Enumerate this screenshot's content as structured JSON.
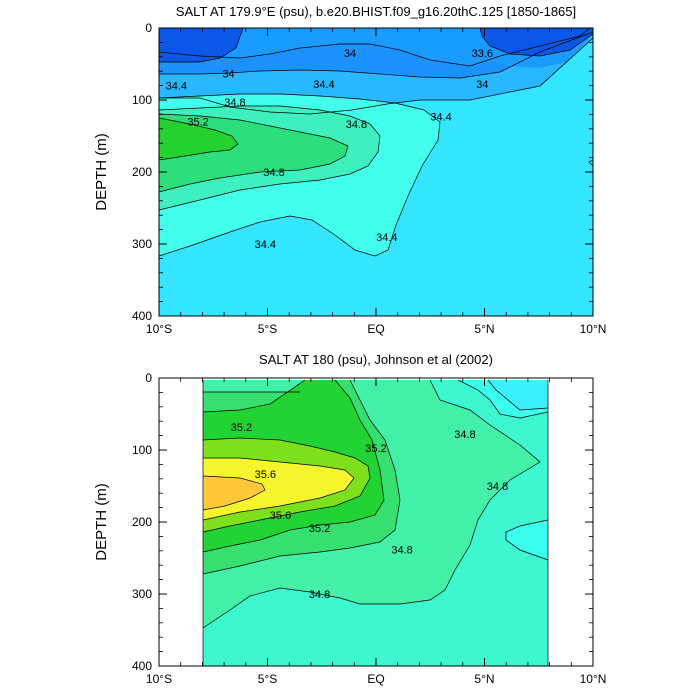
{
  "chart_data": [
    {
      "type": "contour",
      "title": "SALT AT 179.9°E (psu), b.e20.BHIST.f09_g16.20thC.125 [1850-1865]",
      "xlabel": "",
      "ylabel": "DEPTH (m)",
      "xlim": [
        -10,
        10
      ],
      "ylim": [
        400,
        0
      ],
      "xticks": [
        -10,
        -5,
        0,
        5,
        10
      ],
      "xtick_labels": [
        "10°S",
        "5°S",
        "EQ",
        "5°N",
        "10°N"
      ],
      "yticks": [
        0,
        100,
        200,
        300,
        400
      ],
      "ytick_labels": [
        "0",
        "100",
        "200",
        "300",
        "400"
      ],
      "data_lon_range": [
        -10,
        10
      ],
      "contour_labels": [
        {
          "text": "34",
          "lon": -1.2,
          "depth": 35
        },
        {
          "text": "34",
          "lon": -6.8,
          "depth": 63
        },
        {
          "text": "33.6",
          "lon": 4.9,
          "depth": 35
        },
        {
          "text": "34",
          "lon": 4.9,
          "depth": 78
        },
        {
          "text": "34.4",
          "lon": -9.2,
          "depth": 80
        },
        {
          "text": "34.4",
          "lon": -2.4,
          "depth": 78
        },
        {
          "text": "34.8",
          "lon": -6.5,
          "depth": 103
        },
        {
          "text": "35.2",
          "lon": -8.2,
          "depth": 130
        },
        {
          "text": "34.8",
          "lon": -0.9,
          "depth": 133
        },
        {
          "text": "34.4",
          "lon": 3.0,
          "depth": 123
        },
        {
          "text": "34.8",
          "lon": -4.7,
          "depth": 200
        },
        {
          "text": "34.4",
          "lon": -5.1,
          "depth": 300
        },
        {
          "text": "34.4",
          "lon": 0.5,
          "depth": 290
        }
      ]
    },
    {
      "type": "contour",
      "title": "SALT AT 180 (psu), Johnson et al (2002)",
      "xlabel": "",
      "ylabel": "DEPTH (m)",
      "xlim": [
        -10,
        10
      ],
      "ylim": [
        400,
        0
      ],
      "xticks": [
        -10,
        -5,
        0,
        5,
        10
      ],
      "xtick_labels": [
        "10°S",
        "5°S",
        "EQ",
        "5°N",
        "10°N"
      ],
      "yticks": [
        0,
        100,
        200,
        300,
        400
      ],
      "ytick_labels": [
        "0",
        "100",
        "200",
        "300",
        "400"
      ],
      "data_lon_range": [
        -8,
        8
      ],
      "contour_labels": [
        {
          "text": "35.2",
          "lon": -6.2,
          "depth": 68
        },
        {
          "text": "35.2",
          "lon": 0.0,
          "depth": 97
        },
        {
          "text": "34.8",
          "lon": 4.1,
          "depth": 78
        },
        {
          "text": "35.6",
          "lon": -5.1,
          "depth": 133
        },
        {
          "text": "34.8",
          "lon": 5.6,
          "depth": 150
        },
        {
          "text": "35.6",
          "lon": -4.4,
          "depth": 190
        },
        {
          "text": "35.2",
          "lon": -2.6,
          "depth": 208
        },
        {
          "text": "34.8",
          "lon": 1.2,
          "depth": 238
        },
        {
          "text": "34.8",
          "lon": -2.6,
          "depth": 300
        }
      ]
    }
  ]
}
